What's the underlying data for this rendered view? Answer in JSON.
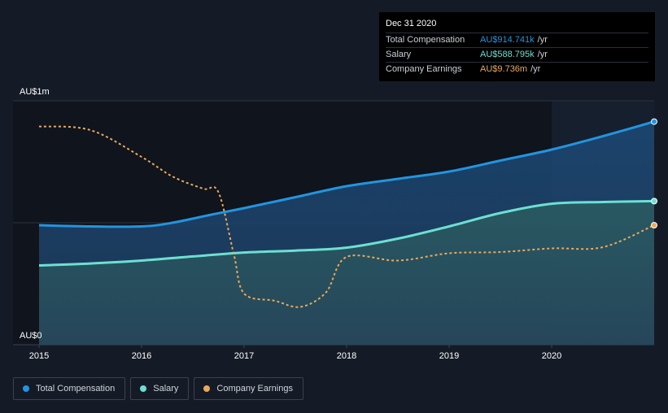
{
  "tooltip": {
    "date": "Dec 31 2020",
    "rows": [
      {
        "label": "Total Compensation",
        "value": "AU$914.741k",
        "unit": "/yr"
      },
      {
        "label": "Salary",
        "value": "AU$588.795k",
        "unit": "/yr"
      },
      {
        "label": "Company Earnings",
        "value": "AU$9.736m",
        "unit": "/yr"
      }
    ]
  },
  "legend": [
    {
      "label": "Total Compensation",
      "color": "#2394df"
    },
    {
      "label": "Salary",
      "color": "#6ce0d2"
    },
    {
      "label": "Company Earnings",
      "color": "#e9a95a"
    }
  ],
  "chart_data": {
    "type": "line",
    "y_tick_labels": [
      "AU$1m",
      "AU$0"
    ],
    "ylim": [
      0,
      1000000
    ],
    "x_tick_labels": [
      "2015",
      "2016",
      "2017",
      "2018",
      "2019",
      "2020"
    ],
    "xlim": [
      2015.0,
      2021.0
    ],
    "colors": {
      "total": "#2394df",
      "salary": "#6ce0d2",
      "earnings": "#e9a95a"
    },
    "series": [
      {
        "key": "total",
        "x": [
          2015.0,
          2015.5,
          2016.0,
          2016.3,
          2016.7,
          2017.0,
          2017.5,
          2018.0,
          2018.5,
          2019.0,
          2019.5,
          2020.0,
          2020.5,
          2021.0
        ],
        "y": [
          490000,
          485000,
          485000,
          500000,
          535000,
          560000,
          605000,
          650000,
          680000,
          710000,
          755000,
          800000,
          855000,
          914741
        ]
      },
      {
        "key": "salary",
        "x": [
          2015.0,
          2015.5,
          2016.0,
          2016.5,
          2017.0,
          2017.5,
          2018.0,
          2018.5,
          2019.0,
          2019.5,
          2020.0,
          2020.5,
          2021.0
        ],
        "y": [
          325000,
          333000,
          345000,
          362000,
          378000,
          386000,
          398000,
          435000,
          485000,
          540000,
          578000,
          585000,
          588795
        ]
      },
      {
        "key": "earnings",
        "scale_note": "dotted line plotted on independent scale",
        "x": [
          2015.0,
          2015.5,
          2016.0,
          2016.3,
          2016.6,
          2016.75,
          2016.9,
          2017.0,
          2017.3,
          2017.55,
          2017.8,
          2018.0,
          2018.5,
          2019.0,
          2019.5,
          2020.0,
          2020.5,
          2021.0
        ],
        "y": [
          895000,
          880000,
          770000,
          690000,
          640000,
          625000,
          370000,
          210000,
          180000,
          155000,
          215000,
          360000,
          345000,
          375000,
          380000,
          395000,
          400000,
          490000
        ]
      }
    ]
  }
}
